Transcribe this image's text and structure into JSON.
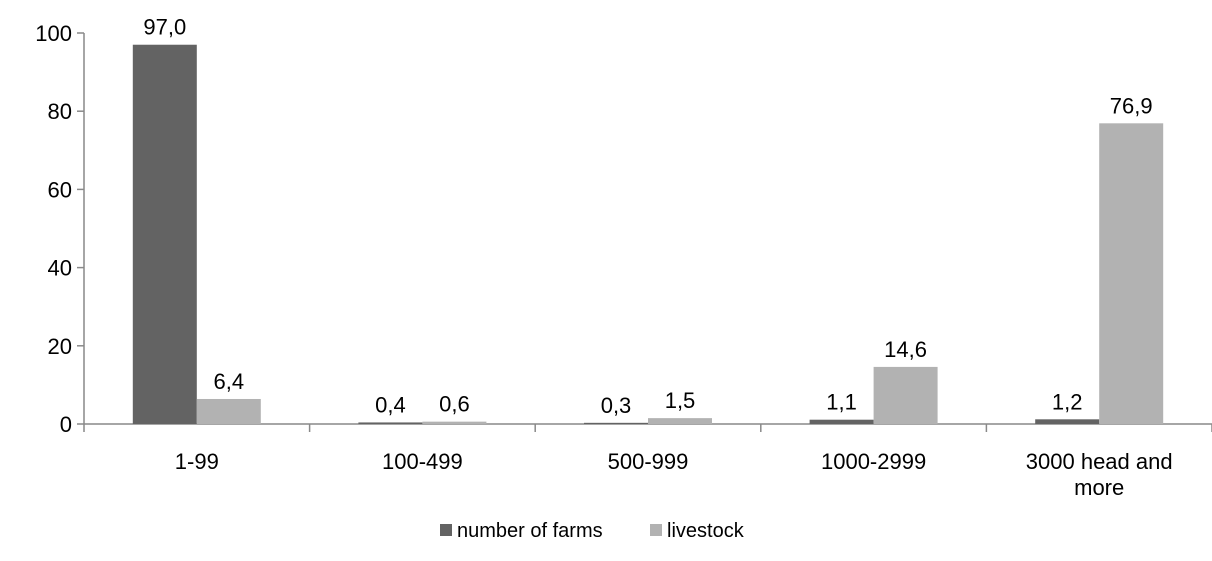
{
  "chart_data": {
    "type": "bar",
    "categories": [
      "1-99",
      "100-499",
      "500-999",
      "1000-2999",
      "3000 head  and more"
    ],
    "category_lines": [
      [
        "1-99"
      ],
      [
        "100-499"
      ],
      [
        "500-999"
      ],
      [
        "1000-2999"
      ],
      [
        "3000 head  and",
        "more"
      ]
    ],
    "series": [
      {
        "name": "number of farms",
        "values": [
          97.0,
          0.4,
          0.3,
          1.1,
          1.2
        ],
        "labels": [
          "97,0",
          "0,4",
          "0,3",
          "1,1",
          "1,2"
        ],
        "color": "#636363"
      },
      {
        "name": "livestock",
        "values": [
          6.4,
          0.6,
          1.5,
          14.6,
          76.9
        ],
        "labels": [
          "6,4",
          "0,6",
          "1,5",
          "14,6",
          "76,9"
        ],
        "color": "#b2b2b2"
      }
    ],
    "title": "",
    "xlabel": "",
    "ylabel": "",
    "ylim": [
      0,
      100
    ],
    "yticks": [
      0,
      20,
      40,
      60,
      80,
      100
    ],
    "ytick_labels": [
      "0",
      "20",
      "40",
      "60",
      "80",
      "100"
    ],
    "grid": false,
    "legend": "bottom-center",
    "axis_color": "#898989"
  }
}
